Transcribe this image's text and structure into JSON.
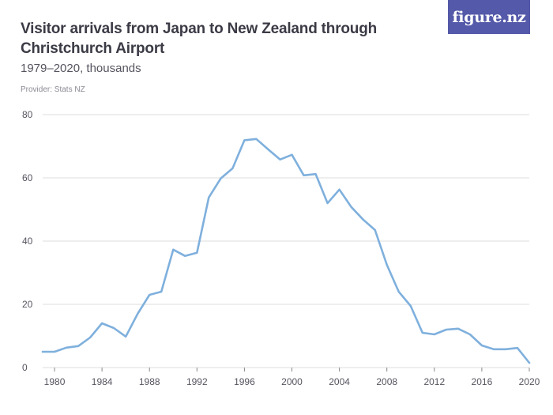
{
  "header": {
    "title": "Visitor arrivals from Japan to New Zealand through Christchurch Airport",
    "subtitle": "1979–2020, thousands",
    "provider": "Provider: Stats NZ",
    "logo_text": "figure.nz"
  },
  "colors": {
    "line": "#7fb0dd",
    "grid": "#dcdcdc",
    "logo_bg": "#5459a9"
  },
  "chart_data": {
    "type": "line",
    "title": "Visitor arrivals from Japan to New Zealand through Christchurch Airport",
    "subtitle": "1979–2020, thousands",
    "xlabel": "",
    "ylabel": "",
    "xlim": [
      1979,
      2020
    ],
    "ylim": [
      0,
      80
    ],
    "x_ticks": [
      1980,
      1984,
      1988,
      1992,
      1996,
      2000,
      2004,
      2008,
      2012,
      2016,
      2020
    ],
    "y_ticks": [
      0,
      20,
      40,
      60,
      80
    ],
    "grid": true,
    "series": [
      {
        "x": [
          1979,
          1980,
          1981,
          1982,
          1983,
          1984,
          1985,
          1986,
          1987,
          1988,
          1989,
          1990,
          1991,
          1992,
          1993,
          1994,
          1995,
          1996,
          1997,
          1998,
          1999,
          2000,
          2001,
          2002,
          2003,
          2004,
          2005,
          2006,
          2007,
          2008,
          2009,
          2010,
          2011,
          2012,
          2013,
          2014,
          2015,
          2016,
          2017,
          2018,
          2019,
          2020
        ],
        "values": [
          5,
          5,
          6.3,
          6.8,
          9.5,
          14,
          12.5,
          9.8,
          17,
          23,
          24,
          37.3,
          35.3,
          36.3,
          53.8,
          59.8,
          63,
          71.9,
          72.3,
          69,
          65.8,
          67.3,
          60.8,
          61.2,
          52,
          56.3,
          50.8,
          46.8,
          43.5,
          32.5,
          24,
          19.5,
          11,
          10.5,
          12,
          12.3,
          10.5,
          7,
          5.8,
          5.8,
          6.2,
          1.5
        ]
      }
    ]
  }
}
